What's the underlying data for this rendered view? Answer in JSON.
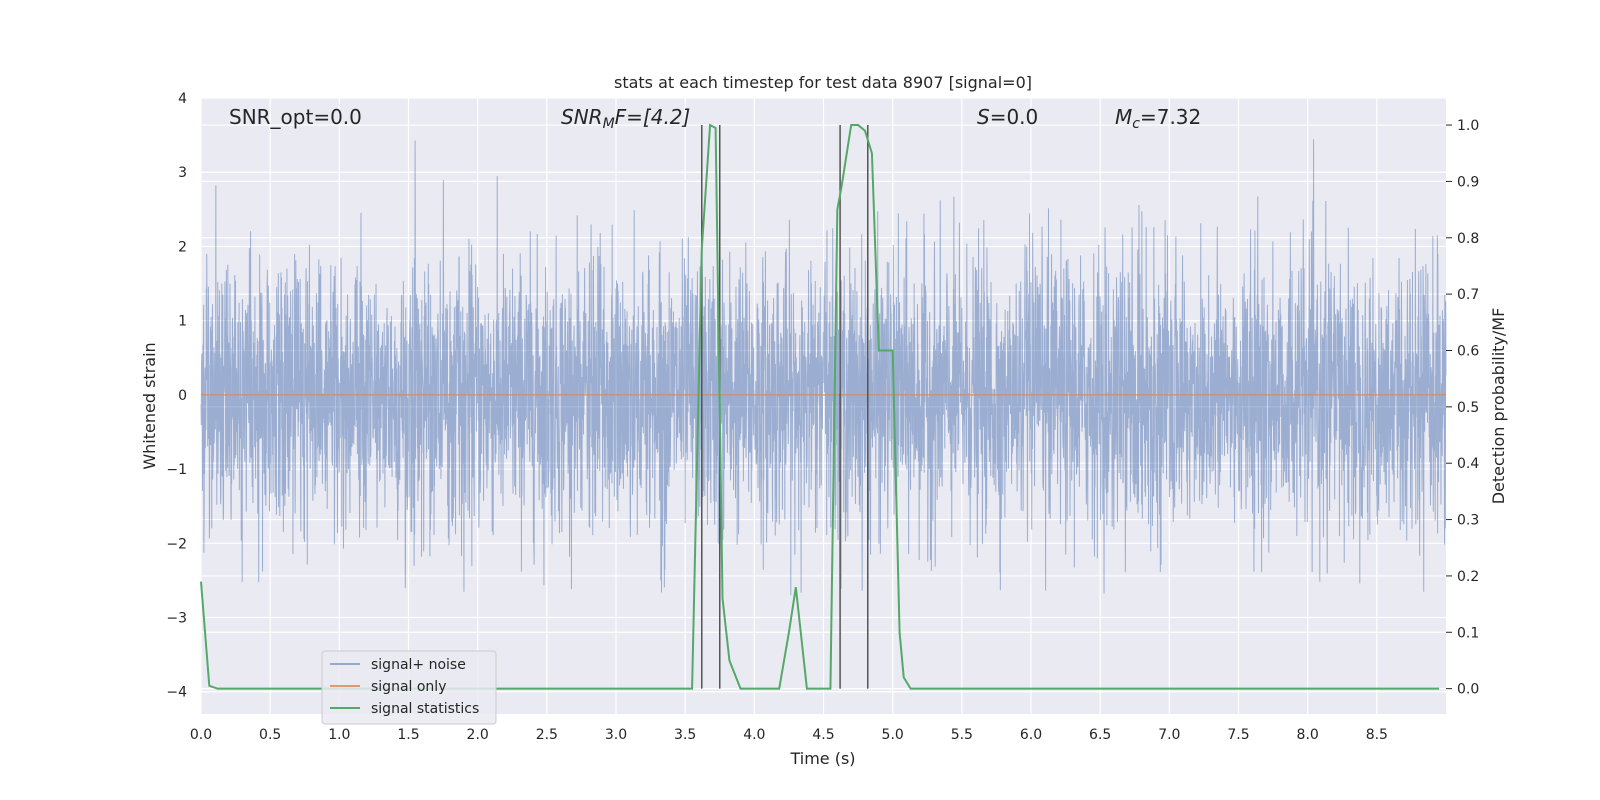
{
  "chart_data": {
    "type": "line",
    "title": "stats at each timestep for test data 8907 [signal=0]",
    "xlabel": "Time (s)",
    "ylabel_left": "Whitened strain",
    "ylabel_right": "Detection probability/MF",
    "xlim": [
      0,
      9
    ],
    "ylim_left": [
      -4.3,
      4
    ],
    "ylim_right": [
      -0.045,
      1.048
    ],
    "x_ticks": [
      "0.0",
      "0.5",
      "1.0",
      "1.5",
      "2.0",
      "2.5",
      "3.0",
      "3.5",
      "4.0",
      "4.5",
      "5.0",
      "5.5",
      "6.0",
      "6.5",
      "7.0",
      "7.5",
      "8.0",
      "8.5"
    ],
    "y_left_ticks": [
      "−4",
      "−3",
      "−2",
      "−1",
      "0",
      "1",
      "2",
      "3",
      "4"
    ],
    "y_right_ticks": [
      "0.0",
      "0.1",
      "0.2",
      "0.3",
      "0.4",
      "0.5",
      "0.6",
      "0.7",
      "0.8",
      "0.9",
      "1.0"
    ],
    "grid": true,
    "legend_position": "lower-left",
    "legend": [
      "signal+ noise",
      "signal only",
      "signal statistics"
    ],
    "annotations": {
      "snr_opt": "SNR_opt=0.0",
      "snr_mf_base": "SNR",
      "snr_mf_sub": "M",
      "snr_mf_rest": "F=[4.2]",
      "s_italic": "S",
      "s_rest": "=0.0",
      "mc_base": "M",
      "mc_sub": "c",
      "mc_rest": "=7.32"
    },
    "colors": {
      "noise": "#4c72b0",
      "signal": "#dd8452",
      "stats": "#55a868",
      "vlines": "#555555",
      "background": "#eaeaf2"
    },
    "series": [
      {
        "name": "signal+ noise",
        "axis": "left",
        "description_range": [
          -2.7,
          3.6
        ],
        "noise_sigma": 0.9
      },
      {
        "name": "signal only",
        "axis": "left",
        "x": [
          0,
          9
        ],
        "y": [
          0,
          0
        ]
      },
      {
        "name": "signal statistics",
        "axis": "right",
        "x": [
          0,
          0.06,
          0.12,
          0.5,
          1.0,
          2.0,
          3.0,
          3.55,
          3.62,
          3.68,
          3.72,
          3.77,
          3.82,
          3.9,
          4.0,
          4.18,
          4.25,
          4.3,
          4.38,
          4.45,
          4.55,
          4.6,
          4.63,
          4.7,
          4.75,
          4.8,
          4.85,
          4.9,
          4.95,
          5.0,
          5.05,
          5.08,
          5.13,
          5.2,
          6.0,
          7.0,
          8.0,
          8.95
        ],
        "y": [
          0.19,
          0.005,
          0.0,
          0.0,
          0.0,
          0.0,
          0.0,
          0.0,
          0.78,
          1.0,
          0.995,
          0.16,
          0.05,
          0.0,
          0.0,
          0.0,
          0.1,
          0.18,
          0.0,
          0.0,
          0.0,
          0.85,
          0.89,
          1.0,
          1.0,
          0.99,
          0.95,
          0.6,
          0.6,
          0.6,
          0.1,
          0.02,
          0.0,
          0.0,
          0.0,
          0.0,
          0.0,
          0.0
        ]
      }
    ],
    "vertical_lines_x": [
      3.62,
      3.75,
      4.62,
      4.82
    ]
  }
}
